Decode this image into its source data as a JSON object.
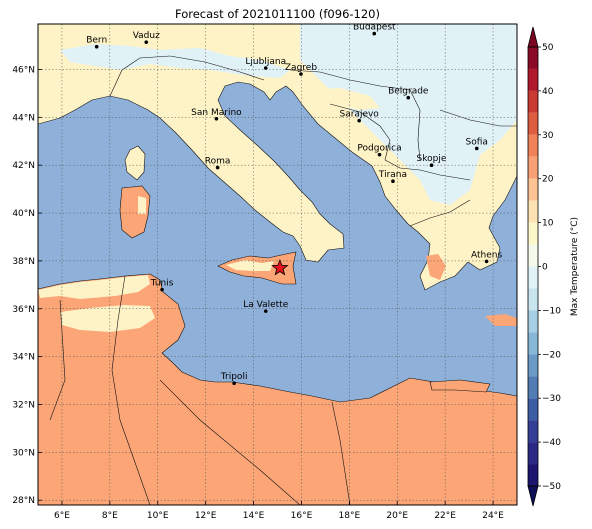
{
  "title": "Forecast of 2021011100 (f096-120)",
  "map": {
    "lon_range": [
      5,
      25
    ],
    "lat_range": [
      27.8,
      47.9
    ],
    "grid": true,
    "lon_ticks": [
      {
        "value": 6,
        "label": "6°E"
      },
      {
        "value": 8,
        "label": "8°E"
      },
      {
        "value": 10,
        "label": "10°E"
      },
      {
        "value": 12,
        "label": "12°E"
      },
      {
        "value": 14,
        "label": "14°E"
      },
      {
        "value": 16,
        "label": "16°E"
      },
      {
        "value": 18,
        "label": "18°E"
      },
      {
        "value": 20,
        "label": "20°E"
      },
      {
        "value": 22,
        "label": "22°E"
      },
      {
        "value": 24,
        "label": "24°E"
      }
    ],
    "lat_ticks": [
      {
        "value": 28,
        "label": "28°N"
      },
      {
        "value": 30,
        "label": "30°N"
      },
      {
        "value": 32,
        "label": "32°N"
      },
      {
        "value": 34,
        "label": "34°N"
      },
      {
        "value": 36,
        "label": "36°N"
      },
      {
        "value": 38,
        "label": "38°N"
      },
      {
        "value": 40,
        "label": "40°N"
      },
      {
        "value": 42,
        "label": "42°N"
      },
      {
        "value": 44,
        "label": "44°N"
      },
      {
        "value": 46,
        "label": "46°N"
      }
    ],
    "cities": [
      {
        "name": "Bern",
        "lon": 7.45,
        "lat": 46.95
      },
      {
        "name": "Vaduz",
        "lon": 9.52,
        "lat": 47.14
      },
      {
        "name": "Budapest",
        "lon": 19.04,
        "lat": 47.5
      },
      {
        "name": "Ljubljana",
        "lon": 14.51,
        "lat": 46.06
      },
      {
        "name": "Zagreb",
        "lon": 15.98,
        "lat": 45.81
      },
      {
        "name": "Belgrade",
        "lon": 20.46,
        "lat": 44.82
      },
      {
        "name": "San Marino",
        "lon": 12.45,
        "lat": 43.94
      },
      {
        "name": "Sarajevo",
        "lon": 18.41,
        "lat": 43.86
      },
      {
        "name": "Sofia",
        "lon": 23.32,
        "lat": 42.7
      },
      {
        "name": "Podgorica",
        "lon": 19.26,
        "lat": 42.44
      },
      {
        "name": "Skopje",
        "lon": 21.43,
        "lat": 42.0
      },
      {
        "name": "Roma",
        "lon": 12.5,
        "lat": 41.9
      },
      {
        "name": "Tirana",
        "lon": 19.82,
        "lat": 41.33
      },
      {
        "name": "Athens",
        "lon": 23.73,
        "lat": 37.98
      },
      {
        "name": "Tunis",
        "lon": 10.18,
        "lat": 36.8
      },
      {
        "name": "La Valette",
        "lon": 14.51,
        "lat": 35.9
      },
      {
        "name": "Tripoli",
        "lon": 13.19,
        "lat": 32.89
      }
    ],
    "marker": {
      "type": "star",
      "lon": 15.1,
      "lat": 37.7,
      "color": "#e8121b"
    }
  },
  "colorbar": {
    "label": "Max Temperature (°C)",
    "min": -50,
    "max": 50,
    "ticks": [
      {
        "value": 50,
        "label": "50"
      },
      {
        "value": 40,
        "label": "40"
      },
      {
        "value": 30,
        "label": "30"
      },
      {
        "value": 20,
        "label": "20"
      },
      {
        "value": 10,
        "label": "10"
      },
      {
        "value": 0,
        "label": "0"
      },
      {
        "value": -10,
        "label": "−10"
      },
      {
        "value": -20,
        "label": "−20"
      },
      {
        "value": -30,
        "label": "−30"
      },
      {
        "value": -40,
        "label": "−40"
      },
      {
        "value": -50,
        "label": "−50"
      }
    ],
    "bands": [
      {
        "from": 45,
        "to": 50,
        "color": "#8b0a26"
      },
      {
        "from": 40,
        "to": 45,
        "color": "#b1182b"
      },
      {
        "from": 35,
        "to": 40,
        "color": "#c93a32"
      },
      {
        "from": 30,
        "to": 35,
        "color": "#de5c40"
      },
      {
        "from": 25,
        "to": 30,
        "color": "#f08158"
      },
      {
        "from": 20,
        "to": 25,
        "color": "#f8a074"
      },
      {
        "from": 15,
        "to": 20,
        "color": "#fdc393"
      },
      {
        "from": 10,
        "to": 15,
        "color": "#fde3b4"
      },
      {
        "from": 5,
        "to": 10,
        "color": "#fef7cb"
      },
      {
        "from": 0,
        "to": 5,
        "color": "#f4fbec"
      },
      {
        "from": -5,
        "to": 0,
        "color": "#e1f2f7"
      },
      {
        "from": -10,
        "to": -5,
        "color": "#c7e4ef"
      },
      {
        "from": -15,
        "to": -10,
        "color": "#a6cfe3"
      },
      {
        "from": -20,
        "to": -15,
        "color": "#86b7d6"
      },
      {
        "from": -25,
        "to": -20,
        "color": "#6a9ac5"
      },
      {
        "from": -30,
        "to": -25,
        "color": "#517db4"
      },
      {
        "from": -35,
        "to": -30,
        "color": "#3d5ea5"
      },
      {
        "from": -40,
        "to": -35,
        "color": "#333f96"
      },
      {
        "from": -45,
        "to": -40,
        "color": "#2a2a86"
      },
      {
        "from": -50,
        "to": -45,
        "color": "#1d1670"
      }
    ],
    "extend_max_color": "#7a0621",
    "extend_min_color": "#11105a"
  },
  "colors": {
    "sea": "#8fb0d8",
    "warm_land": "#fca576",
    "mild_land": "#fef3c6",
    "cool_land": "#e1f2f7",
    "border": "#111111"
  }
}
